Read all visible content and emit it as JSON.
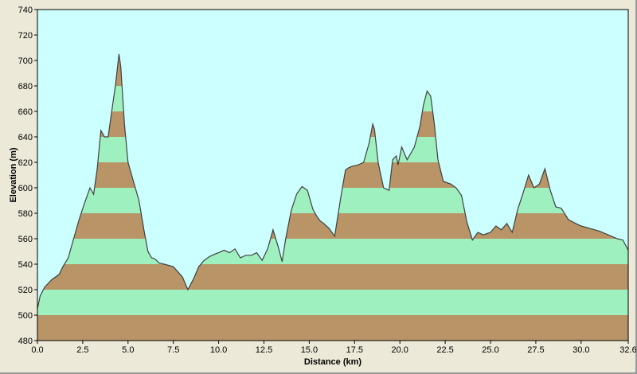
{
  "chart_data": {
    "type": "area",
    "xlabel": "Distance  (km)",
    "ylabel": "Elevation (m)",
    "xlim": [
      0,
      32.6
    ],
    "ylim": [
      480,
      740
    ],
    "x_ticks": [
      0.0,
      2.5,
      5.0,
      7.5,
      10.0,
      12.5,
      15.0,
      17.5,
      20.0,
      22.5,
      25.0,
      27.5,
      30.0,
      32.6
    ],
    "x_tick_labels": [
      "0.0",
      "2.5",
      "5.0",
      "7.5",
      "10.0",
      "12.5",
      "15.0",
      "17.5",
      "20.0",
      "22.5",
      "25.0",
      "27.5",
      "30.0",
      "32.6"
    ],
    "y_ticks": [
      480,
      500,
      520,
      540,
      560,
      580,
      600,
      620,
      640,
      660,
      680,
      700,
      720,
      740
    ],
    "y_tick_labels": [
      "480",
      "500",
      "520",
      "540",
      "560",
      "580",
      "600",
      "620",
      "640",
      "660",
      "680",
      "700",
      "720",
      "740"
    ],
    "band_interval": 20,
    "colors": {
      "plot_background": "#CCFFFF",
      "band_brown": "#B89467",
      "band_green": "#9EF0BE",
      "profile_line": "#404040",
      "frame_background": "#ECE9D8"
    },
    "profile": {
      "x": [
        0,
        0.15,
        0.4,
        0.8,
        1.2,
        1.4,
        1.7,
        2.0,
        2.3,
        2.6,
        2.9,
        3.1,
        3.3,
        3.5,
        3.7,
        3.9,
        4.1,
        4.3,
        4.5,
        4.6,
        4.8,
        5.0,
        5.3,
        5.6,
        5.9,
        6.1,
        6.3,
        6.5,
        6.7,
        7.0,
        7.5,
        8.0,
        8.3,
        8.6,
        8.9,
        9.2,
        9.5,
        9.8,
        10.0,
        10.3,
        10.6,
        10.9,
        11.2,
        11.5,
        11.8,
        12.1,
        12.4,
        12.7,
        13.0,
        13.3,
        13.5,
        13.7,
        14.0,
        14.3,
        14.6,
        14.9,
        15.2,
        15.4,
        15.6,
        15.8,
        16.1,
        16.4,
        16.8,
        17.0,
        17.2,
        17.4,
        17.7,
        18.0,
        18.3,
        18.5,
        18.6,
        18.8,
        19.1,
        19.4,
        19.6,
        19.8,
        19.9,
        20.1,
        20.4,
        20.8,
        21.1,
        21.3,
        21.5,
        21.7,
        21.9,
        22.1,
        22.4,
        22.8,
        23.1,
        23.4,
        23.7,
        24.0,
        24.3,
        24.6,
        25.0,
        25.3,
        25.6,
        25.9,
        26.2,
        26.5,
        26.8,
        27.1,
        27.4,
        27.7,
        28.0,
        28.3,
        28.6,
        28.9,
        29.3,
        29.7,
        30.0,
        30.5,
        31.0,
        31.5,
        32.0,
        32.3,
        32.6
      ],
      "elevation": [
        505,
        515,
        522,
        528,
        532,
        538,
        545,
        560,
        575,
        588,
        600,
        595,
        615,
        645,
        640,
        640,
        660,
        680,
        705,
        695,
        650,
        620,
        605,
        590,
        565,
        550,
        545,
        544,
        541,
        540,
        538,
        530,
        520,
        528,
        538,
        543,
        546,
        548,
        549,
        551,
        549,
        552,
        545,
        547,
        547,
        549,
        543,
        552,
        567,
        553,
        542,
        560,
        582,
        595,
        601,
        598,
        583,
        578,
        574,
        572,
        568,
        562,
        598,
        614,
        616,
        617,
        618,
        620,
        635,
        650,
        646,
        620,
        600,
        598,
        622,
        625,
        618,
        632,
        622,
        632,
        648,
        665,
        676,
        672,
        650,
        622,
        605,
        603,
        600,
        594,
        573,
        559,
        565,
        563,
        565,
        570,
        567,
        572,
        565,
        583,
        596,
        610,
        600,
        603,
        615,
        598,
        585,
        584,
        575,
        572,
        570,
        568,
        566,
        563,
        560,
        559,
        551
      ]
    }
  }
}
